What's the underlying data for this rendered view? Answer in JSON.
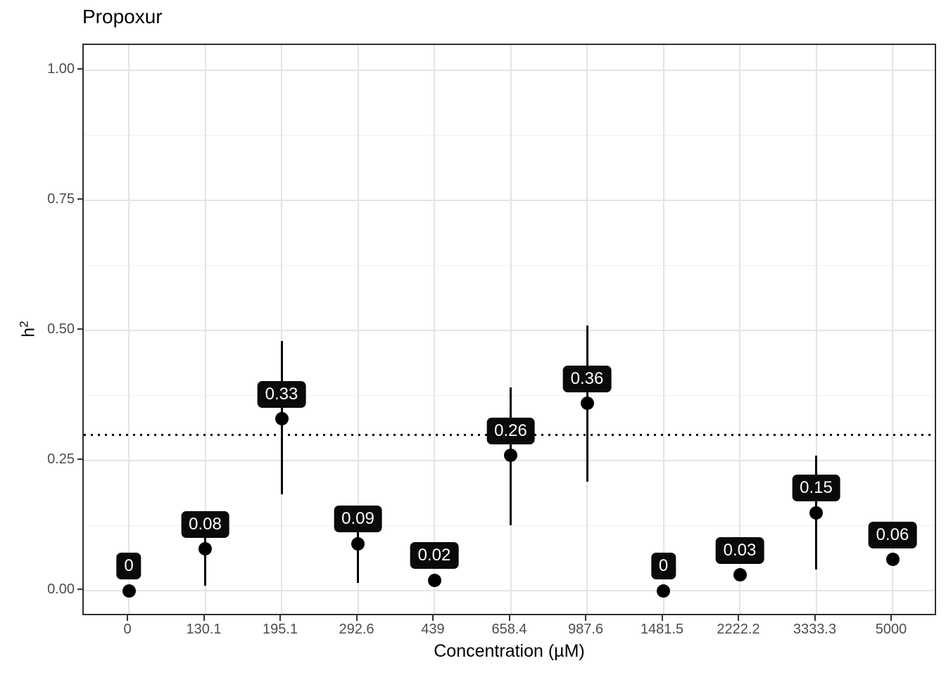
{
  "title": "Propoxur",
  "chart_data": {
    "type": "scatter",
    "title": "Propoxur",
    "xlabel": "Concentration (µM)",
    "ylabel": "h²",
    "ylabel_base": "h",
    "ylabel_sup": "2",
    "categories": [
      "0",
      "130.1",
      "195.1",
      "292.6",
      "439",
      "658.4",
      "987.6",
      "1481.5",
      "2222.2",
      "3333.3",
      "5000"
    ],
    "values": [
      0,
      0.08,
      0.33,
      0.09,
      0.02,
      0.26,
      0.36,
      0,
      0.03,
      0.15,
      0.06
    ],
    "point_labels": [
      "0",
      "0.08",
      "0.33",
      "0.09",
      "0.02",
      "0.26",
      "0.36",
      "0",
      "0.03",
      "0.15",
      "0.06"
    ],
    "error_bars": [
      null,
      [
        0.01,
        0.14
      ],
      [
        0.185,
        0.48
      ],
      [
        0.015,
        0.155
      ],
      null,
      [
        0.125,
        0.39
      ],
      [
        0.21,
        0.51
      ],
      null,
      null,
      [
        0.04,
        0.26
      ],
      null
    ],
    "reference_line_y": 0.3,
    "y_ticks": [
      "0.00",
      "0.25",
      "0.50",
      "0.75",
      "1.00"
    ],
    "y_tick_values": [
      0,
      0.25,
      0.5,
      0.75,
      1.0
    ],
    "y_minor_values": [
      0.125,
      0.375,
      0.625,
      0.875
    ],
    "ylim": [
      -0.05,
      1.05
    ],
    "grid": true,
    "legend": "none",
    "colors": {
      "point": "#000000",
      "error_bar": "#000000",
      "label_bg": "#0a0a0a",
      "label_text": "#ffffff",
      "grid_major": "#e4e4e4",
      "grid_minor": "#efefef",
      "panel_border": "#2f2f2f",
      "tick_label": "#4d4d4d",
      "reference_line": "#000000"
    }
  }
}
